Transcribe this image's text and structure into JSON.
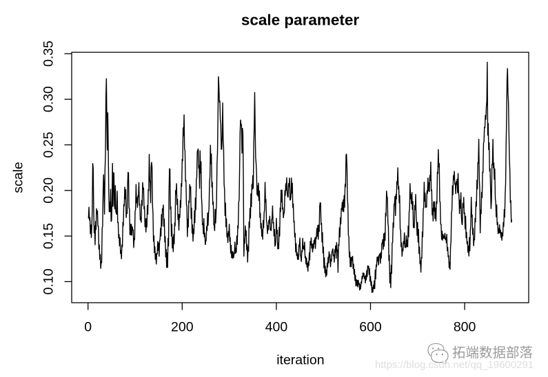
{
  "page": {
    "background": "#ffffff"
  },
  "chart_data": {
    "type": "line",
    "title": "scale parameter",
    "xlabel": "iteration",
    "ylabel": "scale",
    "series": [
      {
        "name": "scale",
        "color": "#000000",
        "values": [
          0.17,
          0.1698,
          0.182,
          0.1672,
          0.1707,
          0.1522,
          0.1626,
          0.148,
          0.1611,
          0.1781,
          0.2299,
          0.2244,
          0.1799,
          0.153,
          0.1616,
          0.14,
          0.1664,
          0.1567,
          0.1803,
          0.174,
          0.1781,
          0.1609,
          0.1608,
          0.1353,
          0.1407,
          0.1239,
          0.1302,
          0.1142,
          0.1216,
          0.1212,
          0.1582,
          0.1608,
          0.1981,
          0.2176,
          0.2028,
          0.1736,
          0.222,
          0.238,
          0.3027,
          0.323,
          0.2717,
          0.244,
          0.2856,
          0.2453,
          0.2002,
          0.1762,
          0.1878,
          0.1763,
          0.2017,
          0.1657,
          0.1672,
          0.1877,
          0.23,
          0.1821,
          0.2198,
          0.2187,
          0.1846,
          0.1793,
          0.2058,
          0.1767,
          0.1749,
          0.1736,
          0.1996,
          0.1648,
          0.1648,
          0.1474,
          0.152,
          0.1388,
          0.1486,
          0.1305,
          0.1346,
          0.1246,
          0.1407,
          0.1376,
          0.1652,
          0.1608,
          0.1851,
          0.1825,
          0.204,
          0.1903,
          0.2014,
          0.1699,
          0.1764,
          0.1742,
          0.2058,
          0.2197,
          0.2194,
          0.1808,
          0.18,
          0.151,
          0.1634,
          0.151,
          0.1633,
          0.1505,
          0.1605,
          0.1572,
          0.1565,
          0.137,
          0.1471,
          0.1466,
          0.1771,
          0.1788,
          0.207,
          0.186,
          0.1925,
          0.181,
          0.1937,
          0.1933,
          0.209,
          0.1844,
          0.1847,
          0.1671,
          0.1711,
          0.1647,
          0.1896,
          0.1831,
          0.209,
          0.2008,
          0.2031,
          0.1806,
          0.1814,
          0.1598,
          0.1693,
          0.154,
          0.1696,
          0.1594,
          0.1839,
          0.1735,
          0.2006,
          0.2002,
          0.24,
          0.212,
          0.2083,
          0.186,
          0.2257,
          0.2311,
          0.2251,
          0.1842,
          0.1743,
          0.1437,
          0.1507,
          0.1313,
          0.1386,
          0.1239,
          0.1308,
          0.1189,
          0.1314,
          0.1298,
          0.1445,
          0.1339,
          0.1427,
          0.1275,
          0.1446,
          0.1463,
          0.159,
          0.1496,
          0.1739,
          0.1607,
          0.1804,
          0.1782,
          0.1845,
          0.1603,
          0.1692,
          0.143,
          0.1498,
          0.1266,
          0.1358,
          0.115,
          0.1319,
          0.1153,
          0.1479,
          0.1387,
          0.1988,
          0.2242,
          0.2231,
          0.179,
          0.1825,
          0.1496,
          0.1634,
          0.1363,
          0.1491,
          0.1325,
          0.152,
          0.1411,
          0.1648,
          0.1608,
          0.2003,
          0.1956,
          0.2079,
          0.184,
          0.1908,
          0.1677,
          0.1738,
          0.156,
          0.1742,
          0.1699,
          0.1894,
          0.1811,
          0.208,
          0.204,
          0.2346,
          0.2319,
          0.269,
          0.2595,
          0.2833,
          0.2457,
          0.2435,
          0.2105,
          0.2108,
          0.1845,
          0.1828,
          0.149,
          0.1691,
          0.1595,
          0.1889,
          0.1862,
          0.2069,
          0.201,
          0.2045,
          0.1687,
          0.1811,
          0.1528,
          0.1627,
          0.144,
          0.158,
          0.1522,
          0.1782,
          0.1642,
          0.1922,
          0.1784,
          0.2114,
          0.2145,
          0.2427,
          0.2437,
          0.2459,
          0.224,
          0.2279,
          0.2019,
          0.244,
          0.2186,
          0.2319,
          0.1923,
          0.1848,
          0.1621,
          0.164,
          0.152,
          0.1696,
          0.1488,
          0.1536,
          0.1403,
          0.1439,
          0.1452,
          0.1611,
          0.1557,
          0.1757,
          0.1614,
          0.1753,
          0.1804,
          0.2091,
          0.2153,
          0.25,
          0.2287,
          0.2405,
          0.2033,
          0.2095,
          0.1842,
          0.1879,
          0.1629,
          0.1612,
          0.1556,
          0.1798,
          0.1639,
          0.1753,
          0.1876,
          0.2296,
          0.2417,
          0.2822,
          0.3252,
          0.3144,
          0.2974,
          0.2978,
          0.2776,
          0.2729,
          0.2452,
          0.2452,
          0.2593,
          0.2963,
          0.2557,
          0.2471,
          0.2064,
          0.2011,
          0.1721,
          0.1866,
          0.1597,
          0.1693,
          0.1487,
          0.1533,
          0.1425,
          0.1555,
          0.1497,
          0.1634,
          0.1439,
          0.1488,
          0.1309,
          0.1403,
          0.1259,
          0.1335,
          0.1251,
          0.133,
          0.1258,
          0.1295,
          0.131,
          0.1437,
          0.1306,
          0.1371,
          0.1317,
          0.1505,
          0.1403,
          0.1604,
          0.1595,
          0.1868,
          0.1897,
          0.2253,
          0.2637,
          0.2776,
          0.2713,
          0.2727,
          0.2404,
          0.2685,
          0.2618,
          0.2116,
          0.1275,
          0.1467,
          0.1417,
          0.1615,
          0.1501,
          0.1562,
          0.1344,
          0.1412,
          0.121,
          0.1387,
          0.1328,
          0.1658,
          0.1588,
          0.1808,
          0.1692,
          0.1968,
          0.1817,
          0.207,
          0.2009,
          0.2167,
          0.2019,
          0.2489,
          0.2695,
          0.3078,
          0.2679,
          0.2363,
          0.2296,
          0.2186,
          0.195,
          0.2056,
          0.1933,
          0.2084,
          0.1885,
          0.1999,
          0.17,
          0.1755,
          0.1581,
          0.1642,
          0.1494,
          0.1575,
          0.146,
          0.1675,
          0.1587,
          0.1754,
          0.1791,
          0.2093,
          0.1881,
          0.189,
          0.1662,
          0.165,
          0.1523,
          0.1618,
          0.1564,
          0.1678,
          0.1638,
          0.1722,
          0.1572,
          0.1578,
          0.1556,
          0.1683,
          0.1688,
          0.1834,
          0.1637,
          0.1656,
          0.1497,
          0.1576,
          0.1392,
          0.1398,
          0.1451,
          0.1698,
          0.1526,
          0.1569,
          0.1355,
          0.1429,
          0.1357,
          0.16,
          0.1495,
          0.1812,
          0.1763,
          0.2008,
          0.1869,
          0.2008,
          0.1791,
          0.1813,
          0.1697,
          0.1748,
          0.1758,
          0.2001,
          0.1941,
          0.2079,
          0.1997,
          0.2144,
          0.1977,
          0.1935,
          0.1923,
          0.208,
          0.2039,
          0.214,
          0.1896,
          0.1897,
          0.1934,
          0.214,
          0.1965,
          0.2084,
          0.1807,
          0.1857,
          0.1657,
          0.166,
          0.1485,
          0.1535,
          0.1322,
          0.1421,
          0.1283,
          0.1323,
          0.1241,
          0.1301,
          0.1239,
          0.1408,
          0.138,
          0.1483,
          0.1289,
          0.1275,
          0.1217,
          0.1334,
          0.133,
          0.1479,
          0.1359,
          0.1393,
          0.1345,
          0.1437,
          0.1258,
          0.1281,
          0.1189,
          0.1264,
          0.1156,
          0.1205,
          0.1111,
          0.1223,
          0.1172,
          0.1322,
          0.1233,
          0.1445,
          0.1399,
          0.1484,
          0.1364,
          0.1413,
          0.1321,
          0.1418,
          0.1362,
          0.1458,
          0.1414,
          0.1483,
          0.136,
          0.1496,
          0.1468,
          0.1588,
          0.1495,
          0.162,
          0.146,
          0.1626,
          0.1545,
          0.1825,
          0.1865,
          0.1862,
          0.1623,
          0.1643,
          0.143,
          0.1542,
          0.1309,
          0.1385,
          0.1147,
          0.1266,
          0.1093,
          0.1173,
          0.1049,
          0.113,
          0.1067,
          0.1209,
          0.1155,
          0.1272,
          0.1201,
          0.1331,
          0.1282,
          0.1289,
          0.116,
          0.1252,
          0.1219,
          0.1327,
          0.134,
          0.1363,
          0.128,
          0.1297,
          0.121,
          0.1342,
          0.1332,
          0.1398,
          0.1252,
          0.1433,
          0.133,
          0.1355,
          0.1097,
          0.1403,
          0.1399,
          0.1596,
          0.1485,
          0.1704,
          0.1629,
          0.1807,
          0.1789,
          0.1875,
          0.1769,
          0.1901,
          0.1762,
          0.1948,
          0.1811,
          0.2071,
          0.2036,
          0.2387,
          0.2401,
          0.2264,
          0.1902,
          0.184,
          0.1507,
          0.1491,
          0.1265,
          0.1329,
          0.116,
          0.1269,
          0.116,
          0.1269,
          0.1229,
          0.1282,
          0.1139,
          0.1197,
          0.1076,
          0.1138,
          0.1007,
          0.1075,
          0.0948,
          0.1025,
          0.0955,
          0.1019,
          0.0938,
          0.1019,
          0.0967,
          0.0988,
          0.0903,
          0.097,
          0.0918,
          0.1,
          0.098,
          0.1061,
          0.1029,
          0.11,
          0.1056,
          0.1095,
          0.103,
          0.1059,
          0.0982,
          0.1073,
          0.1015,
          0.1126,
          0.1051,
          0.1177,
          0.1145,
          0.1173,
          0.1075,
          0.1146,
          0.0998,
          0.1061,
          0.0953,
          0.1006,
          0.0878,
          0.0939,
          0.0881,
          0.0966,
          0.0918,
          0.1014,
          0.092,
          0.1132,
          0.1025,
          0.1178,
          0.1172,
          0.1272,
          0.1223,
          0.1277,
          0.1179,
          0.1288,
          0.1293,
          0.131,
          0.1197,
          0.1323,
          0.1255,
          0.1419,
          0.1423,
          0.1464,
          0.1351,
          0.1528,
          0.1384,
          0.1538,
          0.1449,
          0.1755,
          0.1715,
          0.1997,
          0.1931,
          0.192,
          0.1638,
          0.1605,
          0.1229,
          0.1293,
          0.0981,
          0.1102,
          0.0929,
          0.1185,
          0.1086,
          0.1425,
          0.1429,
          0.165,
          0.159,
          0.185,
          0.1856,
          0.1938,
          0.172,
          0.196,
          0.1901,
          0.2103,
          0.2064,
          0.2252,
          0.2012,
          0.2048,
          0.1859,
          0.1949,
          0.1579,
          0.1564,
          0.1377,
          0.143,
          0.1275,
          0.1364,
          0.1334,
          0.1444,
          0.1411,
          0.154,
          0.1373,
          0.1396,
          0.1369,
          0.1507,
          0.1381,
          0.146,
          0.1377,
          0.1615,
          0.1488,
          0.1761,
          0.18,
          0.208,
          0.1905,
          0.1958,
          0.185,
          0.1982,
          0.1787,
          0.1884,
          0.1596,
          0.1601,
          0.1595,
          0.1841,
          0.1785,
          0.196,
          0.1707,
          0.1641,
          0.1503,
          0.1654,
          0.1429,
          0.1577,
          0.1304,
          0.1384,
          0.1193,
          0.123,
          0.1099,
          0.1268,
          0.1252,
          0.1549,
          0.1488,
          0.1799,
          0.1809,
          0.2095,
          0.1877,
          0.1975,
          0.1809,
          0.1836,
          0.1813,
          0.2,
          0.1963,
          0.214,
          0.1992,
          0.2087,
          0.1983,
          0.2168,
          0.2106,
          0.2315,
          0.1993,
          0.2011,
          0.1728,
          0.1804,
          0.166,
          0.1879,
          0.177,
          0.188,
          0.1687,
          0.1811,
          0.166,
          0.1883,
          0.1853,
          0.2205,
          0.2181,
          0.2452,
          0.2253,
          0.23,
          0.1881,
          0.1871,
          0.163,
          0.1628,
          0.146,
          0.1558,
          0.145,
          0.1522,
          0.1472,
          0.1506,
          0.1471,
          0.1534,
          0.1457,
          0.1482,
          0.1423,
          0.1523,
          0.1335,
          0.1379,
          0.1268,
          0.1288,
          0.1149,
          0.1217,
          0.1131,
          0.1388,
          0.1441,
          0.1756,
          0.1786,
          0.2055,
          0.1949,
          0.2166,
          0.2114,
          0.2213,
          0.2064,
          0.2079,
          0.196,
          0.2102,
          0.2063,
          0.2127,
          0.1971,
          0.219,
          0.1985,
          0.1933,
          0.1741,
          0.1898,
          0.1802,
          0.198,
          0.1716,
          0.1642,
          0.1621,
          0.1862,
          0.181,
          0.1928,
          0.1742,
          0.1757,
          0.1574,
          0.1721,
          0.1477,
          0.1546,
          0.1411,
          0.1445,
          0.1318,
          0.1394,
          0.1277,
          0.1489,
          0.1334,
          0.1561,
          0.1613,
          0.193,
          0.1707,
          0.1735,
          0.1513,
          0.1589,
          0.139,
          0.147,
          0.1454,
          0.1698,
          0.165,
          0.1879,
          0.1821,
          0.2117,
          0.2012,
          0.2309,
          0.2297,
          0.2565,
          0.2138,
          0.2014,
          0.153,
          0.1791,
          0.1742,
          0.1984,
          0.1917,
          0.2204,
          0.2193,
          0.2516,
          0.2534,
          0.2698,
          0.2684,
          0.2828,
          0.2776,
          0.2918,
          0.2976,
          0.341,
          0.2602,
          0.274,
          0.2443,
          0.2527,
          0.2207,
          0.2243,
          0.2029,
          0.1797,
          0.1889,
          0.2286,
          0.2285,
          0.2565,
          0.2243,
          0.2304,
          0.2117,
          0.224,
          0.191,
          0.1871,
          0.1706,
          0.1845,
          0.1622,
          0.1656,
          0.1522,
          0.1586,
          0.1531,
          0.1628,
          0.1529,
          0.1571,
          0.1482,
          0.1544,
          0.145,
          0.1539,
          0.1497,
          0.1653,
          0.1601,
          0.1795,
          0.1703,
          0.1956,
          0.2077,
          0.2507,
          0.2778,
          0.3212,
          0.334,
          0.3064,
          0.2967,
          0.2638,
          0.2352,
          0.2214,
          0.1875,
          0.1882,
          0.1648,
          0.168
        ]
      }
    ],
    "x_start": 0,
    "x_step": 1,
    "x_ticks": [
      {
        "value": 0,
        "label": "0"
      },
      {
        "value": 200,
        "label": "200"
      },
      {
        "value": 400,
        "label": "400"
      },
      {
        "value": 600,
        "label": "600"
      },
      {
        "value": 800,
        "label": "800"
      }
    ],
    "y_ticks": [
      {
        "value": 0.1,
        "label": "0.10"
      },
      {
        "value": 0.15,
        "label": "0.15"
      },
      {
        "value": 0.2,
        "label": "0.20"
      },
      {
        "value": 0.25,
        "label": "0.25"
      },
      {
        "value": 0.3,
        "label": "0.30"
      },
      {
        "value": 0.35,
        "label": "0.35"
      }
    ],
    "xlim": [
      -34.7,
      936.0
    ],
    "ylim": [
      0.0769,
      0.3515
    ],
    "grid": false,
    "legend_position": null,
    "line_color": "#000000"
  },
  "watermark": {
    "logo_icon": "chat-bubbles",
    "brand_text": "拓端数据部落",
    "url_text": "https://blog.csdn.net/qq_19600291",
    "brand_color": "#9b9b9b",
    "url_color": "#dedede"
  }
}
